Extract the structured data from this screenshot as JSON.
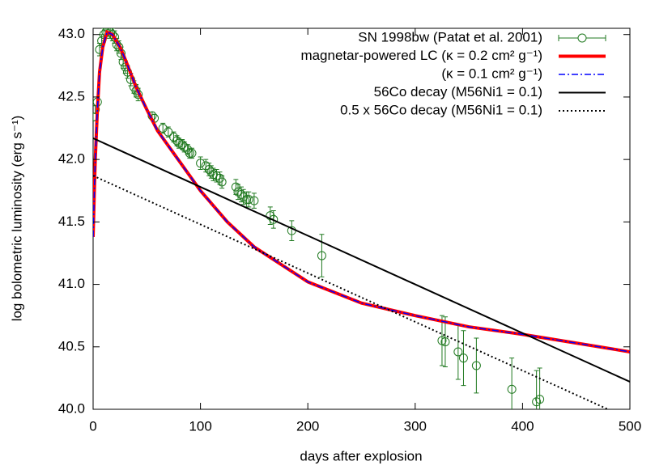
{
  "chart_data": {
    "type": "line",
    "xlabel": "days after explosion",
    "ylabel": "log bolometric luminosity (erg s⁻¹)",
    "xlim": [
      0,
      500
    ],
    "ylim": [
      40,
      43.05
    ],
    "xticks": [
      0,
      100,
      200,
      300,
      400,
      500
    ],
    "yticks": [
      {
        "value": 40,
        "label": "40.0"
      },
      {
        "value": 40.5,
        "label": "40.5"
      },
      {
        "value": 41,
        "label": "41.0"
      },
      {
        "value": 41.5,
        "label": "41.5"
      },
      {
        "value": 42,
        "label": "42.0"
      },
      {
        "value": 42.5,
        "label": "42.5"
      },
      {
        "value": 43,
        "label": "43.0"
      }
    ],
    "series": [
      {
        "name": "SN 1998bw (Patat et al. 2001)",
        "style": "errorbar",
        "color": "#217a21",
        "x": [
          0,
          2,
          4,
          6,
          8,
          10,
          12,
          14,
          16,
          18,
          20,
          22,
          24,
          26,
          28,
          30,
          32,
          35,
          38,
          40,
          42,
          55,
          57,
          65,
          70,
          75,
          78,
          80,
          83,
          85,
          88,
          90,
          92,
          100,
          105,
          108,
          110,
          112,
          115,
          118,
          120,
          133,
          135,
          138,
          140,
          143,
          145,
          150,
          165,
          168,
          185,
          213,
          325,
          328,
          340,
          345,
          357,
          390,
          413,
          416
        ],
        "values": [
          42.34,
          42.4,
          42.46,
          42.88,
          42.95,
          43.0,
          43.02,
          43.05,
          43.02,
          43.0,
          42.98,
          42.92,
          42.9,
          42.85,
          42.78,
          42.74,
          42.7,
          42.64,
          42.58,
          42.55,
          42.52,
          42.35,
          42.33,
          42.25,
          42.22,
          42.18,
          42.15,
          42.13,
          42.12,
          42.1,
          42.08,
          42.05,
          42.05,
          41.97,
          41.95,
          41.92,
          41.9,
          41.88,
          41.87,
          41.85,
          41.82,
          41.78,
          41.74,
          41.72,
          41.7,
          41.68,
          41.68,
          41.67,
          41.55,
          41.52,
          41.43,
          41.23,
          40.55,
          40.54,
          40.46,
          40.41,
          40.35,
          40.16,
          40.06,
          40.08
        ],
        "errors": [
          0.03,
          0.03,
          0.03,
          0.05,
          0.05,
          0.05,
          0.05,
          0.05,
          0.05,
          0.05,
          0.05,
          0.05,
          0.05,
          0.05,
          0.05,
          0.05,
          0.05,
          0.05,
          0.05,
          0.05,
          0.05,
          0.03,
          0.03,
          0.04,
          0.04,
          0.04,
          0.04,
          0.04,
          0.04,
          0.04,
          0.04,
          0.04,
          0.04,
          0.05,
          0.05,
          0.05,
          0.05,
          0.05,
          0.05,
          0.05,
          0.05,
          0.06,
          0.06,
          0.06,
          0.06,
          0.06,
          0.06,
          0.06,
          0.07,
          0.07,
          0.08,
          0.17,
          0.2,
          0.2,
          0.22,
          0.22,
          0.22,
          0.25,
          0.25,
          0.25
        ]
      },
      {
        "name": "magnetar-powered LC (κ = 0.2 cm² g⁻¹)",
        "style": "solid",
        "width": 4,
        "color": "#ff0000",
        "x": [
          0,
          1,
          2,
          4,
          6,
          9,
          13,
          18,
          25,
          30,
          40,
          50,
          60,
          75,
          100,
          125,
          150,
          200,
          250,
          300,
          350,
          400,
          450,
          500
        ],
        "values": [
          41.38,
          41.7,
          42.0,
          42.4,
          42.7,
          42.9,
          43.02,
          43.0,
          42.9,
          42.8,
          42.58,
          42.4,
          42.23,
          42.05,
          41.75,
          41.5,
          41.3,
          41.02,
          40.85,
          40.75,
          40.66,
          40.6,
          40.53,
          40.46
        ]
      },
      {
        "name": "(κ = 0.1 cm² g⁻¹)",
        "style": "dashdot",
        "width": 1.5,
        "color": "#0000ff",
        "x": [
          0,
          1,
          2,
          4,
          6,
          9,
          13,
          18,
          25,
          30,
          40,
          50,
          60,
          75,
          100,
          125,
          150,
          200,
          250,
          300,
          350,
          400,
          450,
          500
        ],
        "values": [
          41.38,
          41.7,
          42.0,
          42.4,
          42.7,
          42.9,
          43.02,
          43.0,
          42.9,
          42.8,
          42.58,
          42.4,
          42.23,
          42.05,
          41.75,
          41.5,
          41.3,
          41.02,
          40.85,
          40.75,
          40.66,
          40.6,
          40.53,
          40.46
        ]
      },
      {
        "name": "56Co decay (M56Ni1 = 0.1)",
        "style": "solid",
        "width": 2,
        "color": "#000000",
        "x": [
          0,
          500
        ],
        "values": [
          42.17,
          40.22
        ]
      },
      {
        "name": "0.5 x 56Co decay (M56Ni1 = 0.1)",
        "style": "dotted",
        "width": 2,
        "color": "#000000",
        "x": [
          0,
          500
        ],
        "values": [
          41.87,
          39.92
        ]
      }
    ]
  }
}
